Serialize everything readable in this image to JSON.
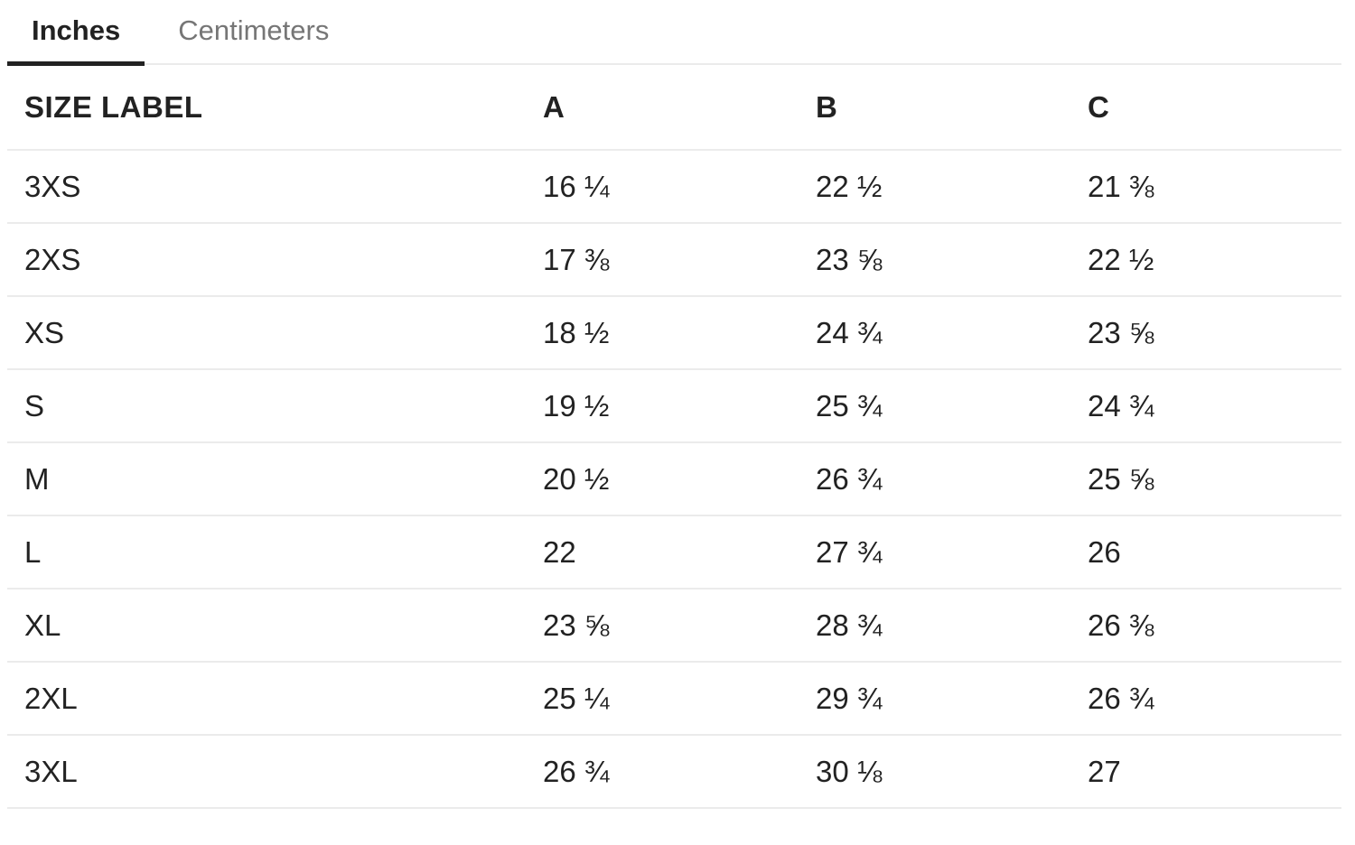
{
  "tabs": [
    {
      "label": "Inches",
      "active": true
    },
    {
      "label": "Centimeters",
      "active": false
    }
  ],
  "table": {
    "headers": [
      "SIZE LABEL",
      "A",
      "B",
      "C"
    ],
    "rows": [
      {
        "size": "3XS",
        "a": "16 ¼",
        "b": "22 ½",
        "c": "21 ⅜"
      },
      {
        "size": "2XS",
        "a": "17 ⅜",
        "b": "23 ⅝",
        "c": "22 ½"
      },
      {
        "size": "XS",
        "a": "18 ½",
        "b": "24 ¾",
        "c": "23 ⅝"
      },
      {
        "size": "S",
        "a": "19 ½",
        "b": "25 ¾",
        "c": "24 ¾"
      },
      {
        "size": "M",
        "a": "20 ½",
        "b": "26 ¾",
        "c": "25 ⅝"
      },
      {
        "size": "L",
        "a": "22",
        "b": "27 ¾",
        "c": "26"
      },
      {
        "size": "XL",
        "a": "23 ⅝",
        "b": "28 ¾",
        "c": "26 ⅜"
      },
      {
        "size": "2XL",
        "a": "25 ¼",
        "b": "29 ¾",
        "c": "26 ¾"
      },
      {
        "size": "3XL",
        "a": "26 ¾",
        "b": "30 ⅛",
        "c": "27"
      }
    ]
  },
  "colors": {
    "text": "#222222",
    "inactive_tab_text": "#767676",
    "divider": "#ebebeb",
    "active_tab_underline": "#222222",
    "background": "#ffffff"
  }
}
